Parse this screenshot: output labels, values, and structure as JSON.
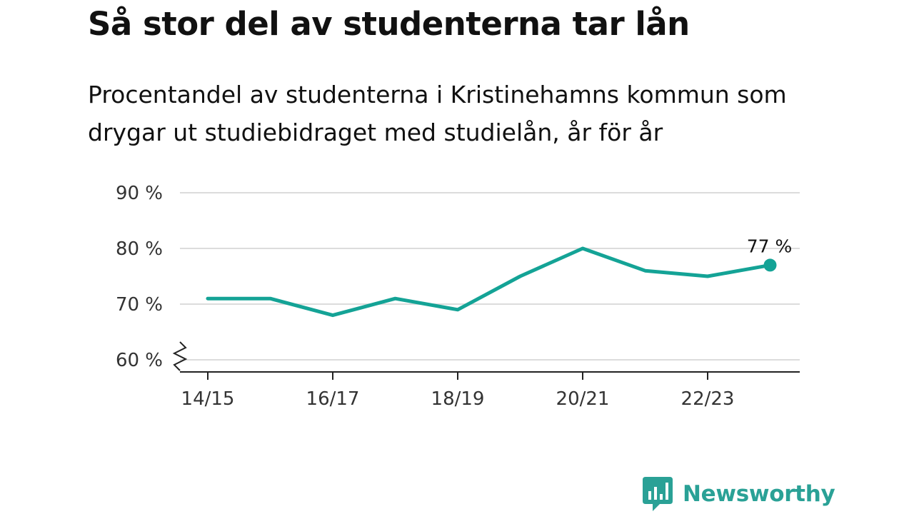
{
  "title": "Så stor del av studenterna tar lån",
  "subtitle": "Procentandel av studenterna i Kristinehamns kommun som drygar ut studiebidraget med studielån, år för år",
  "brand": {
    "name": "Newsworthy",
    "color": "#2aa196",
    "icon": "newsworthy-logo-icon"
  },
  "chart_data": {
    "type": "line",
    "x": [
      "14/15",
      "15/16",
      "16/17",
      "17/18",
      "18/19",
      "19/20",
      "20/21",
      "21/22",
      "22/23",
      "23/24"
    ],
    "x_tick_labels": [
      "14/15",
      "16/17",
      "18/19",
      "20/21",
      "22/23"
    ],
    "series": [
      {
        "values": [
          71,
          71,
          68,
          71,
          69,
          75,
          80,
          76,
          75,
          77
        ],
        "color": "#14a396"
      }
    ],
    "y_ticks": [
      60,
      70,
      80,
      90
    ],
    "y_tick_format": "{} %",
    "ylim": [
      60,
      90
    ],
    "y_axis_break": true,
    "grid": true,
    "annotations": [
      {
        "index": 9,
        "text": "77 %"
      }
    ],
    "xlabel": "",
    "ylabel": ""
  }
}
